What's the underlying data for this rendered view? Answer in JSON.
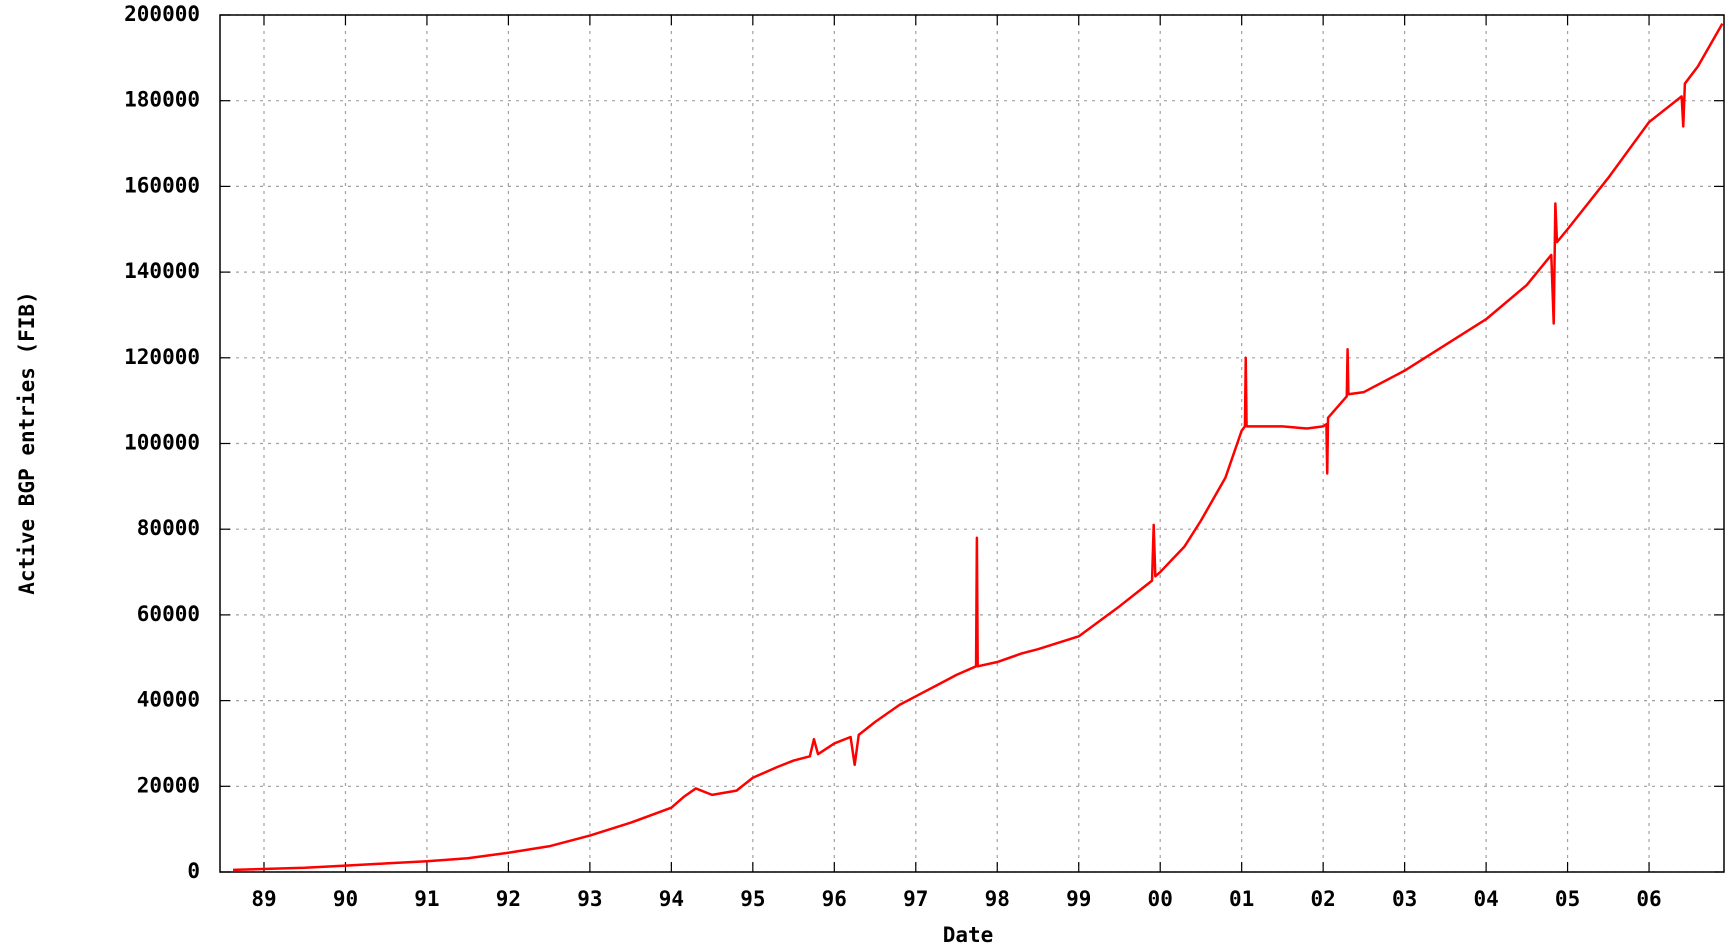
{
  "chart_data": {
    "type": "line",
    "xlabel": "Date",
    "ylabel": "Active BGP entries (FIB)",
    "color": "#ff0000",
    "grid": true,
    "xlim": [
      1988.46,
      2006.92
    ],
    "xticks": [
      {
        "value": 1989,
        "label": "89"
      },
      {
        "value": 1990,
        "label": "90"
      },
      {
        "value": 1991,
        "label": "91"
      },
      {
        "value": 1992,
        "label": "92"
      },
      {
        "value": 1993,
        "label": "93"
      },
      {
        "value": 1994,
        "label": "94"
      },
      {
        "value": 1995,
        "label": "95"
      },
      {
        "value": 1996,
        "label": "96"
      },
      {
        "value": 1997,
        "label": "97"
      },
      {
        "value": 1998,
        "label": "98"
      },
      {
        "value": 1999,
        "label": "99"
      },
      {
        "value": 2000,
        "label": "00"
      },
      {
        "value": 2001,
        "label": "01"
      },
      {
        "value": 2002,
        "label": "02"
      },
      {
        "value": 2003,
        "label": "03"
      },
      {
        "value": 2004,
        "label": "04"
      },
      {
        "value": 2005,
        "label": "05"
      },
      {
        "value": 2006,
        "label": "06"
      }
    ],
    "ylim": [
      0,
      200000
    ],
    "yticks": [
      0,
      20000,
      40000,
      60000,
      80000,
      100000,
      120000,
      140000,
      160000,
      180000,
      200000
    ],
    "x": [
      1988.62,
      1989.5,
      1990,
      1990.5,
      1991,
      1991.5,
      1992,
      1992.5,
      1993,
      1993.5,
      1994,
      1994.15,
      1994.3,
      1994.5,
      1994.8,
      1995,
      1995.3,
      1995.5,
      1995.7,
      1995.75,
      1995.8,
      1996,
      1996.2,
      1996.25,
      1996.3,
      1996.5,
      1996.8,
      1997,
      1997.3,
      1997.5,
      1997.74,
      1997.75,
      1997.76,
      1998,
      1998.3,
      1998.5,
      1999,
      1999.5,
      1999.9,
      1999.92,
      1999.94,
      2000,
      2000.3,
      2000.5,
      2000.8,
      2001,
      2001.04,
      2001.05,
      2001.06,
      2001.3,
      2001.5,
      2001.8,
      2002,
      2002.04,
      2002.05,
      2002.06,
      2002.29,
      2002.3,
      2002.31,
      2002.5,
      2003,
      2003.5,
      2004,
      2004.5,
      2004.8,
      2004.83,
      2004.85,
      2004.87,
      2005,
      2005.5,
      2006,
      2006.4,
      2006.42,
      2006.44,
      2006.6,
      2006.9
    ],
    "values": [
      500,
      1000,
      1500,
      2000,
      2500,
      3200,
      4500,
      6000,
      8500,
      11500,
      15000,
      17500,
      19500,
      18000,
      19000,
      22000,
      24500,
      26000,
      27000,
      31000,
      27500,
      30000,
      31500,
      25000,
      32000,
      35000,
      39000,
      41000,
      44000,
      46000,
      48000,
      78000,
      48000,
      49000,
      51000,
      52000,
      55000,
      62000,
      68000,
      81000,
      69000,
      70000,
      76000,
      82000,
      92000,
      103000,
      104000,
      120000,
      104000,
      104000,
      104000,
      103500,
      104000,
      104500,
      93000,
      106000,
      111000,
      122000,
      111500,
      112000,
      117000,
      123000,
      129000,
      137000,
      144000,
      128000,
      156000,
      147000,
      150000,
      162000,
      175000,
      181000,
      174000,
      184000,
      188000,
      198000
    ]
  }
}
